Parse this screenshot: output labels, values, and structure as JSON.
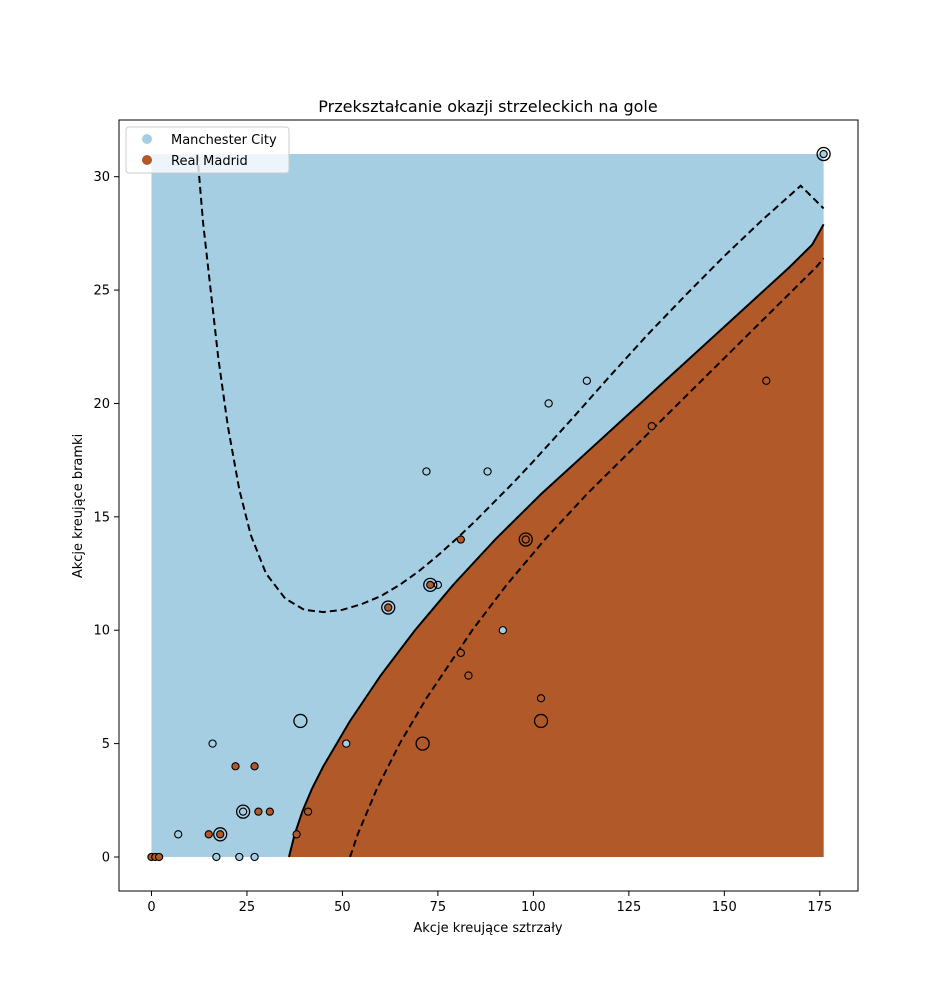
{
  "chart_data": {
    "type": "scatter",
    "title": "Przekształcanie okazji strzeleckich na gole",
    "xlabel": "Akcje kreujące sztrzały",
    "ylabel": "Akcje kreujące bramki",
    "xlim": [
      -8.5,
      185
    ],
    "ylim": [
      -1.5,
      32.5
    ],
    "xticks": [
      0,
      25,
      50,
      75,
      100,
      125,
      150,
      175
    ],
    "yticks": [
      0,
      5,
      10,
      15,
      20,
      25,
      30
    ],
    "grid": false,
    "legend_position": "top-left",
    "colors": {
      "city": "#a6cee3",
      "madrid": "#b15928",
      "boundary": "#000000"
    },
    "series": [
      {
        "name": "Manchester City",
        "color": "#a6cee3",
        "points": [
          [
            7,
            1
          ],
          [
            16,
            5
          ],
          [
            17,
            0
          ],
          [
            23,
            0
          ],
          [
            27,
            0
          ],
          [
            24,
            2
          ],
          [
            51,
            5
          ],
          [
            72,
            17
          ],
          [
            75,
            12
          ],
          [
            88,
            17
          ],
          [
            92,
            10
          ],
          [
            104,
            20
          ],
          [
            114,
            21
          ],
          [
            176,
            31
          ]
        ]
      },
      {
        "name": "Real Madrid",
        "color": "#b15928",
        "points": [
          [
            0,
            0
          ],
          [
            1,
            0
          ],
          [
            2,
            0
          ],
          [
            15,
            1
          ],
          [
            18,
            1
          ],
          [
            22,
            4
          ],
          [
            27,
            4
          ],
          [
            28,
            2
          ],
          [
            31,
            2
          ],
          [
            38,
            1
          ],
          [
            41,
            2
          ],
          [
            62,
            11
          ],
          [
            73,
            12
          ],
          [
            81,
            14
          ],
          [
            81,
            9
          ],
          [
            83,
            8
          ],
          [
            98,
            14
          ],
          [
            102,
            7
          ],
          [
            131,
            19
          ],
          [
            161,
            21
          ]
        ]
      }
    ],
    "support_vectors": [
      [
        18,
        1
      ],
      [
        24,
        2
      ],
      [
        39,
        6
      ],
      [
        62,
        11
      ],
      [
        71,
        5
      ],
      [
        73,
        12
      ],
      [
        98,
        14
      ],
      [
        102,
        6
      ],
      [
        176,
        31
      ]
    ],
    "decision_region": {
      "xmin": 0,
      "xmax": 176,
      "ymin": 0,
      "ymax": 31
    },
    "boundary_curve": [
      [
        36,
        0
      ],
      [
        37.5,
        1
      ],
      [
        39.5,
        2
      ],
      [
        42,
        3
      ],
      [
        45,
        4
      ],
      [
        48.5,
        5
      ],
      [
        52,
        6
      ],
      [
        56,
        7
      ],
      [
        60,
        8
      ],
      [
        64.5,
        9
      ],
      [
        69,
        10
      ],
      [
        74,
        11
      ],
      [
        79,
        12
      ],
      [
        84.5,
        13
      ],
      [
        90,
        14
      ],
      [
        96,
        15
      ],
      [
        102,
        16
      ],
      [
        108.5,
        17
      ],
      [
        115,
        18
      ],
      [
        121.5,
        19
      ],
      [
        128,
        20
      ],
      [
        134.5,
        21
      ],
      [
        141,
        22
      ],
      [
        147.5,
        23
      ],
      [
        154,
        24
      ],
      [
        160.5,
        25
      ],
      [
        167,
        26
      ],
      [
        173,
        27
      ],
      [
        176,
        27.9
      ]
    ],
    "margin_upper_curve": [
      [
        12,
        31
      ],
      [
        13.5,
        28
      ],
      [
        15.5,
        25
      ],
      [
        17.5,
        22
      ],
      [
        20,
        19
      ],
      [
        23,
        16.2
      ],
      [
        26,
        14.2
      ],
      [
        30,
        12.5
      ],
      [
        35,
        11.4
      ],
      [
        40,
        10.9
      ],
      [
        45,
        10.8
      ],
      [
        50,
        10.9
      ],
      [
        55,
        11.15
      ],
      [
        60,
        11.5
      ],
      [
        65,
        12
      ],
      [
        70,
        12.6
      ],
      [
        75,
        13.3
      ],
      [
        80,
        14.05
      ],
      [
        85,
        14.85
      ],
      [
        90,
        15.7
      ],
      [
        95,
        16.55
      ],
      [
        100,
        17.45
      ],
      [
        110,
        19.3
      ],
      [
        120,
        21.2
      ],
      [
        130,
        23.05
      ],
      [
        140,
        24.8
      ],
      [
        150,
        26.5
      ],
      [
        160,
        28.1
      ],
      [
        170,
        29.6
      ],
      [
        176,
        28.6
      ]
    ],
    "margin_lower_curve": [
      [
        52,
        0
      ],
      [
        54,
        1
      ],
      [
        56.5,
        2
      ],
      [
        59,
        3
      ],
      [
        62,
        4
      ],
      [
        65,
        5
      ],
      [
        68.5,
        6
      ],
      [
        72,
        7
      ],
      [
        76,
        8
      ],
      [
        80,
        9
      ],
      [
        84,
        10
      ],
      [
        88.5,
        11
      ],
      [
        93,
        12
      ],
      [
        98,
        13
      ],
      [
        103,
        14
      ],
      [
        108.5,
        15
      ],
      [
        114,
        16
      ],
      [
        120,
        17
      ],
      [
        126,
        18
      ],
      [
        132,
        19
      ],
      [
        138,
        20
      ],
      [
        144,
        21
      ],
      [
        150,
        22
      ],
      [
        156,
        23
      ],
      [
        162,
        24
      ],
      [
        168,
        25
      ],
      [
        174,
        26
      ],
      [
        176,
        26.4
      ]
    ]
  }
}
